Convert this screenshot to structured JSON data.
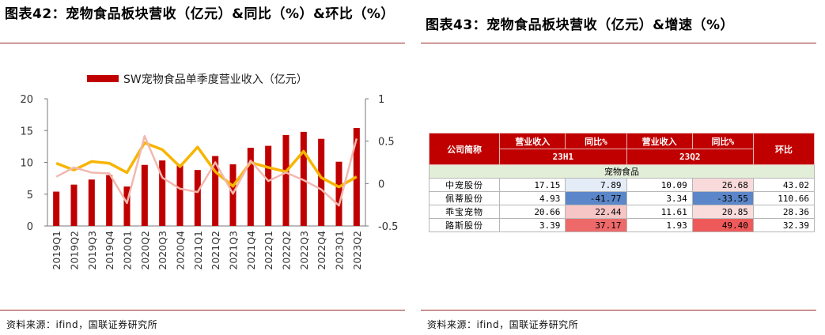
{
  "left": {
    "title": "图表42：宠物食品板块营收（亿元）&同比（%）&环比（%）",
    "source": "资料来源：ifind，国联证券研究所"
  },
  "right": {
    "title": "图表43：宠物食品板块营收（亿元）&增速（%）",
    "source": "资料来源：ifind，国联证券研究所",
    "table": {
      "col_name": "公司简称",
      "col_labels": [
        "营业收入",
        "同比%",
        "营业收入",
        "同比%",
        "环比"
      ],
      "period_1": "23H1",
      "period_2": "23Q2",
      "group": "宠物食品",
      "rows": [
        {
          "name": "中宠股份",
          "rev_h1": "17.15",
          "yoy_h1": "7.89",
          "rev_q2": "10.09",
          "yoy_q2": "26.68",
          "qoq": "43.02"
        },
        {
          "name": "佩蒂股份",
          "rev_h1": "4.93",
          "yoy_h1": "-41.77",
          "rev_q2": "3.34",
          "yoy_q2": "-33.55",
          "qoq": "110.66"
        },
        {
          "name": "乖宝宠物",
          "rev_h1": "20.66",
          "yoy_h1": "22.44",
          "rev_q2": "11.61",
          "yoy_q2": "20.85",
          "qoq": "28.36"
        },
        {
          "name": "路斯股份",
          "rev_h1": "3.39",
          "yoy_h1": "37.17",
          "rev_q2": "1.93",
          "yoy_q2": "49.40",
          "qoq": "32.39"
        }
      ],
      "colors": {
        "header": "#c00000",
        "group_row": "#e3eed9",
        "yoy_h1": [
          "#e4ecf7",
          "#5b86c9",
          "#f6c5c5",
          "#ee6a6a"
        ],
        "yoy_q2": [
          "#f9dada",
          "#5b86c9",
          "#f9dcdc",
          "#ee5a5a"
        ]
      }
    }
  },
  "chart_data": {
    "type": "bar",
    "title": "",
    "categories": [
      "2019Q1",
      "2019Q2",
      "2019Q3",
      "2019Q4",
      "2020Q1",
      "2020Q2",
      "2020Q3",
      "2020Q4",
      "2021Q1",
      "2021Q2",
      "2021Q3",
      "2021Q4",
      "2022Q1",
      "2022Q2",
      "2022Q3",
      "2022Q4",
      "2023Q1",
      "2023Q2"
    ],
    "series": [
      {
        "name": "SW宠物食品单季度营业收入（亿元）",
        "type": "bar",
        "axis": "left",
        "color": "#c00000",
        "values": [
          5.4,
          6.5,
          7.3,
          8.0,
          6.2,
          9.6,
          10.3,
          9.7,
          8.8,
          11.0,
          9.7,
          12.3,
          12.6,
          14.3,
          14.8,
          13.7,
          10.1,
          15.4
        ]
      },
      {
        "type": "line",
        "axis": "right",
        "color": "#f7b500",
        "values": [
          0.24,
          0.16,
          0.26,
          0.24,
          0.13,
          0.48,
          0.4,
          0.2,
          0.43,
          0.14,
          -0.03,
          0.25,
          0.19,
          0.14,
          0.38,
          0.07,
          -0.04,
          0.08
        ]
      },
      {
        "type": "line",
        "axis": "right",
        "color": "#f2b8ae",
        "values": [
          0.08,
          0.19,
          0.13,
          0.12,
          -0.23,
          0.56,
          0.07,
          -0.06,
          -0.1,
          0.25,
          -0.12,
          0.27,
          0.03,
          0.13,
          0.04,
          -0.07,
          -0.26,
          0.53
        ]
      }
    ],
    "yticks_left": [
      "20",
      "15",
      "10",
      "5",
      "0"
    ],
    "yticks_right": [
      "1",
      "0.5",
      "0",
      "-0.5"
    ],
    "ylim_left": [
      0,
      20
    ],
    "ylim_right": [
      -0.5,
      1
    ],
    "legend_position": "top",
    "grid": false
  }
}
